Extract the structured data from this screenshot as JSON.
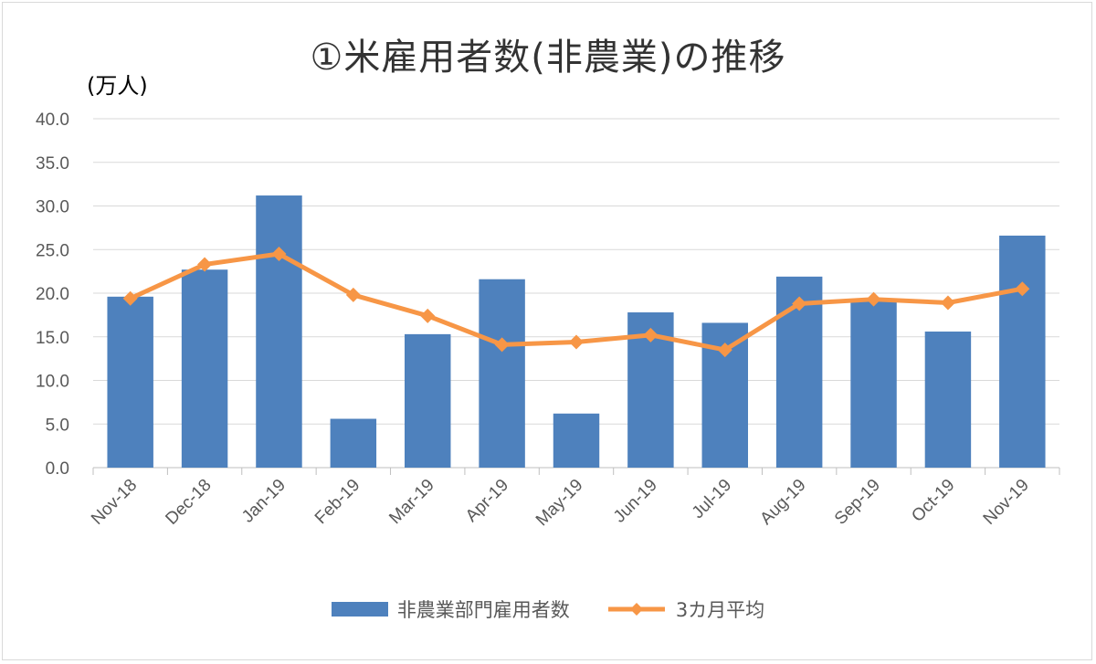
{
  "chart_data": {
    "type": "bar",
    "title": "①米雇用者数(非農業)の推移",
    "ylabel": "(万人)",
    "ylim": [
      0,
      40
    ],
    "ytick_step": 5,
    "ytick_labels": [
      "0.0",
      "5.0",
      "10.0",
      "15.0",
      "20.0",
      "25.0",
      "30.0",
      "35.0",
      "40.0"
    ],
    "categories": [
      "Nov-18",
      "Dec-18",
      "Jan-19",
      "Feb-19",
      "Mar-19",
      "Apr-19",
      "May-19",
      "Jun-19",
      "Jul-19",
      "Aug-19",
      "Sep-19",
      "Oct-19",
      "Nov-19"
    ],
    "series": [
      {
        "name": "非農業部門雇用者数",
        "kind": "bar",
        "color": "#4e81bd",
        "values": [
          19.6,
          22.7,
          31.2,
          5.6,
          15.3,
          21.6,
          6.2,
          17.8,
          16.6,
          21.9,
          19.3,
          15.6,
          26.6
        ]
      },
      {
        "name": "3カ月平均",
        "kind": "line",
        "marker": "diamond",
        "color": "#f79646",
        "values": [
          19.4,
          23.3,
          24.5,
          19.8,
          17.4,
          14.1,
          14.4,
          15.2,
          13.5,
          18.8,
          19.3,
          18.9,
          20.5
        ]
      }
    ],
    "grid": true,
    "legend_position": "bottom"
  }
}
